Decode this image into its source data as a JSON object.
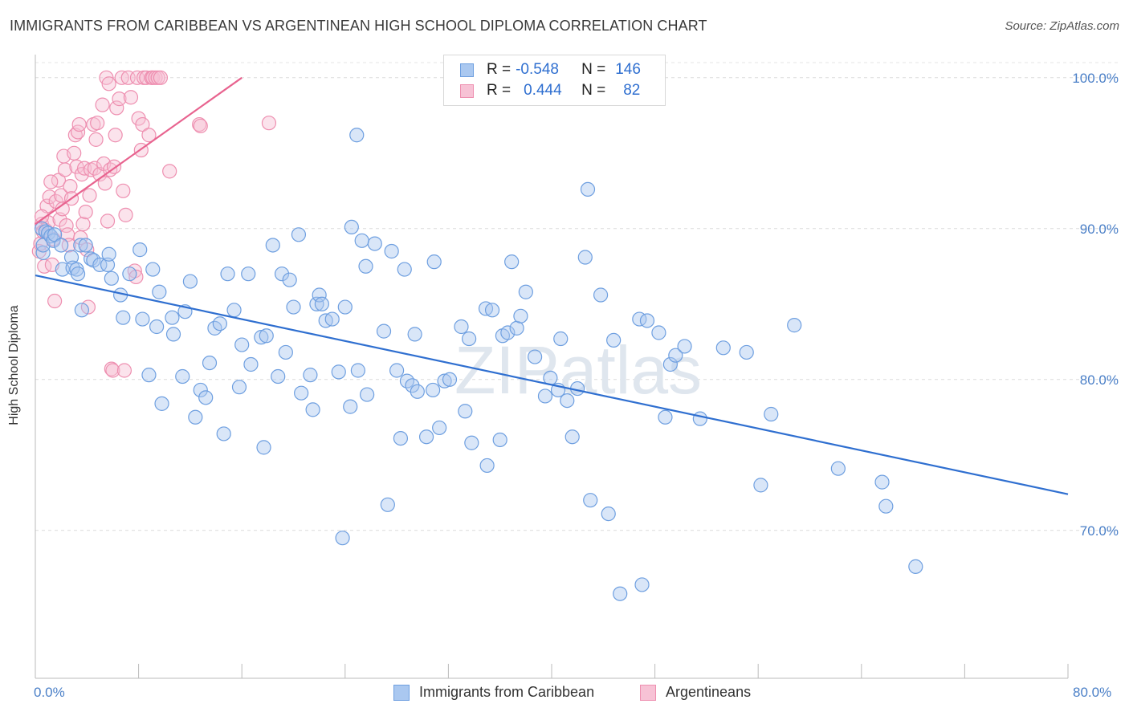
{
  "title": "IMMIGRANTS FROM CARIBBEAN VS ARGENTINEAN HIGH SCHOOL DIPLOMA CORRELATION CHART",
  "source": "Source: ZipAtlas.com",
  "watermark": "ZIPatlas",
  "colors": {
    "blue": "#6e9fe0",
    "blue_fill": "#aac8f0",
    "blue_line": "#2f6fd0",
    "pink": "#ee8fb0",
    "pink_fill": "#f7c2d5",
    "pink_line": "#e8638f",
    "axis_label": "#4a7fc7"
  },
  "legend": {
    "blue": {
      "r_label": "R =",
      "r_value": "-0.548",
      "n_label": "N =",
      "n_value": "146"
    },
    "pink": {
      "r_label": "R =",
      "r_value": "0.444",
      "n_label": "N =",
      "n_value": "82"
    }
  },
  "chart_data": {
    "type": "scatter",
    "title": "IMMIGRANTS FROM CARIBBEAN VS ARGENTINEAN HIGH SCHOOL DIPLOMA CORRELATION CHART",
    "xlabel": "",
    "ylabel": "High School Diploma",
    "xlim": [
      0,
      80
    ],
    "ylim": [
      60.2,
      101.0
    ],
    "x_tick_labels": [
      "0.0%",
      "80.0%"
    ],
    "y_ticks": [
      70,
      80,
      90,
      100
    ],
    "y_tick_labels": [
      "70.0%",
      "80.0%",
      "90.0%",
      "100.0%"
    ],
    "grid": "horizontal dashed",
    "legend_position": "top-center",
    "series": [
      {
        "name": "Immigrants from Caribbean",
        "color": "blue",
        "trend": {
          "x": [
            0,
            80
          ],
          "y": [
            86.9,
            72.4
          ]
        },
        "points": [
          [
            0.5,
            90.0
          ],
          [
            0.6,
            88.4
          ],
          [
            0.6,
            88.9
          ],
          [
            0.8,
            89.8
          ],
          [
            1.0,
            89.7
          ],
          [
            1.2,
            89.5
          ],
          [
            1.4,
            89.2
          ],
          [
            1.5,
            89.6
          ],
          [
            2.0,
            88.9
          ],
          [
            2.1,
            87.3
          ],
          [
            2.8,
            88.1
          ],
          [
            2.9,
            87.4
          ],
          [
            3.2,
            87.3
          ],
          [
            3.3,
            87.0
          ],
          [
            3.5,
            88.9
          ],
          [
            3.6,
            84.6
          ],
          [
            3.9,
            88.9
          ],
          [
            4.3,
            88.0
          ],
          [
            4.5,
            87.9
          ],
          [
            5.0,
            87.6
          ],
          [
            5.6,
            87.6
          ],
          [
            5.7,
            88.3
          ],
          [
            5.9,
            86.7
          ],
          [
            6.6,
            85.6
          ],
          [
            6.8,
            84.1
          ],
          [
            7.3,
            87.0
          ],
          [
            8.1,
            88.6
          ],
          [
            8.3,
            84.0
          ],
          [
            8.8,
            80.3
          ],
          [
            9.1,
            87.3
          ],
          [
            9.4,
            83.5
          ],
          [
            9.6,
            85.8
          ],
          [
            9.8,
            78.4
          ],
          [
            10.6,
            84.1
          ],
          [
            10.7,
            83.0
          ],
          [
            11.4,
            80.2
          ],
          [
            11.6,
            84.5
          ],
          [
            12.0,
            86.5
          ],
          [
            12.4,
            77.5
          ],
          [
            12.8,
            79.3
          ],
          [
            13.2,
            78.8
          ],
          [
            13.5,
            81.1
          ],
          [
            13.9,
            83.4
          ],
          [
            14.3,
            83.7
          ],
          [
            14.6,
            76.4
          ],
          [
            14.9,
            87.0
          ],
          [
            15.4,
            84.6
          ],
          [
            15.8,
            79.5
          ],
          [
            16.0,
            82.3
          ],
          [
            16.5,
            87.0
          ],
          [
            16.7,
            81.0
          ],
          [
            17.5,
            82.8
          ],
          [
            17.7,
            75.5
          ],
          [
            17.9,
            82.9
          ],
          [
            18.4,
            88.9
          ],
          [
            18.8,
            80.2
          ],
          [
            19.1,
            87.0
          ],
          [
            19.4,
            81.8
          ],
          [
            19.7,
            86.6
          ],
          [
            20.0,
            84.8
          ],
          [
            20.4,
            89.6
          ],
          [
            20.6,
            79.1
          ],
          [
            21.3,
            80.3
          ],
          [
            21.5,
            78.0
          ],
          [
            21.8,
            85.0
          ],
          [
            22.0,
            85.6
          ],
          [
            22.2,
            85.0
          ],
          [
            22.5,
            83.9
          ],
          [
            23.0,
            84.0
          ],
          [
            23.5,
            80.5
          ],
          [
            24.0,
            84.8
          ],
          [
            24.4,
            78.2
          ],
          [
            24.5,
            90.1
          ],
          [
            25.0,
            80.6
          ],
          [
            25.3,
            89.2
          ],
          [
            25.6,
            87.5
          ],
          [
            25.7,
            79.0
          ],
          [
            26.3,
            89.0
          ],
          [
            27.0,
            83.2
          ],
          [
            27.3,
            71.7
          ],
          [
            27.6,
            88.5
          ],
          [
            28.0,
            80.6
          ],
          [
            28.3,
            76.1
          ],
          [
            28.6,
            87.3
          ],
          [
            28.8,
            79.9
          ],
          [
            29.2,
            79.6
          ],
          [
            29.4,
            83.0
          ],
          [
            29.6,
            79.2
          ],
          [
            30.3,
            76.2
          ],
          [
            30.8,
            79.3
          ],
          [
            30.9,
            87.8
          ],
          [
            31.3,
            76.8
          ],
          [
            31.7,
            79.9
          ],
          [
            32.1,
            80.0
          ],
          [
            33.0,
            83.5
          ],
          [
            33.3,
            77.9
          ],
          [
            33.6,
            82.7
          ],
          [
            33.8,
            75.8
          ],
          [
            34.9,
            84.7
          ],
          [
            35.0,
            74.3
          ],
          [
            35.4,
            84.6
          ],
          [
            36.0,
            76.0
          ],
          [
            36.2,
            82.9
          ],
          [
            36.6,
            83.1
          ],
          [
            36.9,
            87.8
          ],
          [
            37.3,
            83.4
          ],
          [
            37.6,
            84.2
          ],
          [
            38.0,
            85.8
          ],
          [
            38.7,
            81.5
          ],
          [
            39.5,
            78.9
          ],
          [
            39.9,
            80.1
          ],
          [
            40.5,
            79.3
          ],
          [
            40.7,
            82.7
          ],
          [
            41.2,
            78.6
          ],
          [
            41.6,
            76.2
          ],
          [
            42.0,
            79.4
          ],
          [
            42.6,
            88.1
          ],
          [
            42.8,
            92.6
          ],
          [
            43.0,
            72.0
          ],
          [
            43.8,
            85.6
          ],
          [
            44.4,
            71.1
          ],
          [
            44.8,
            82.6
          ],
          [
            45.3,
            65.8
          ],
          [
            46.8,
            84.0
          ],
          [
            47.0,
            66.4
          ],
          [
            47.4,
            83.9
          ],
          [
            48.3,
            83.1
          ],
          [
            48.8,
            77.5
          ],
          [
            49.2,
            81.0
          ],
          [
            49.6,
            81.6
          ],
          [
            50.3,
            82.2
          ],
          [
            51.5,
            77.4
          ],
          [
            53.3,
            82.1
          ],
          [
            55.1,
            81.8
          ],
          [
            56.2,
            73.0
          ],
          [
            57.0,
            77.7
          ],
          [
            58.8,
            83.6
          ],
          [
            62.2,
            74.1
          ],
          [
            65.6,
            73.2
          ],
          [
            65.9,
            71.6
          ],
          [
            68.2,
            67.6
          ],
          [
            24.9,
            96.2
          ],
          [
            23.8,
            69.5
          ]
        ]
      },
      {
        "name": "Argentineans",
        "color": "pink",
        "trend": {
          "x": [
            0,
            16
          ],
          "y": [
            90.3,
            100.0
          ]
        },
        "points": [
          [
            0.3,
            88.5
          ],
          [
            0.4,
            89.0
          ],
          [
            0.5,
            90.3
          ],
          [
            0.6,
            89.8
          ],
          [
            0.7,
            87.5
          ],
          [
            0.8,
            89.9
          ],
          [
            0.9,
            91.5
          ],
          [
            1.0,
            90.4
          ],
          [
            1.1,
            92.1
          ],
          [
            1.3,
            87.6
          ],
          [
            1.4,
            89.3
          ],
          [
            1.5,
            85.2
          ],
          [
            1.6,
            91.8
          ],
          [
            1.8,
            93.2
          ],
          [
            1.9,
            90.6
          ],
          [
            2.0,
            92.2
          ],
          [
            2.1,
            91.3
          ],
          [
            2.2,
            94.8
          ],
          [
            2.3,
            93.9
          ],
          [
            2.4,
            90.2
          ],
          [
            2.5,
            89.6
          ],
          [
            2.6,
            88.9
          ],
          [
            2.7,
            92.8
          ],
          [
            2.8,
            92.0
          ],
          [
            3.0,
            95.0
          ],
          [
            3.1,
            96.2
          ],
          [
            3.2,
            94.1
          ],
          [
            3.3,
            96.4
          ],
          [
            3.4,
            96.9
          ],
          [
            3.5,
            89.4
          ],
          [
            3.6,
            93.6
          ],
          [
            3.7,
            90.3
          ],
          [
            3.8,
            94.0
          ],
          [
            3.9,
            91.1
          ],
          [
            4.0,
            88.6
          ],
          [
            4.1,
            84.8
          ],
          [
            4.2,
            92.2
          ],
          [
            4.3,
            93.9
          ],
          [
            4.5,
            96.9
          ],
          [
            4.6,
            94.0
          ],
          [
            4.7,
            95.9
          ],
          [
            4.8,
            97.0
          ],
          [
            5.0,
            93.6
          ],
          [
            5.2,
            98.2
          ],
          [
            5.3,
            94.3
          ],
          [
            5.4,
            93.0
          ],
          [
            5.5,
            100.0
          ],
          [
            5.6,
            90.5
          ],
          [
            5.7,
            99.6
          ],
          [
            5.8,
            93.9
          ],
          [
            5.9,
            80.7
          ],
          [
            6.0,
            80.6
          ],
          [
            6.1,
            94.1
          ],
          [
            6.2,
            96.2
          ],
          [
            6.3,
            98.0
          ],
          [
            6.5,
            98.6
          ],
          [
            6.7,
            100.0
          ],
          [
            6.8,
            92.5
          ],
          [
            6.9,
            80.6
          ],
          [
            7.0,
            90.9
          ],
          [
            7.2,
            100.0
          ],
          [
            7.4,
            98.7
          ],
          [
            7.7,
            87.2
          ],
          [
            7.8,
            86.8
          ],
          [
            7.9,
            100.0
          ],
          [
            8.0,
            97.3
          ],
          [
            8.2,
            95.2
          ],
          [
            8.3,
            96.9
          ],
          [
            8.4,
            100.0
          ],
          [
            8.6,
            100.0
          ],
          [
            8.8,
            96.2
          ],
          [
            9.0,
            100.0
          ],
          [
            9.1,
            100.0
          ],
          [
            9.3,
            100.0
          ],
          [
            9.5,
            100.0
          ],
          [
            9.7,
            100.0
          ],
          [
            10.4,
            93.8
          ],
          [
            12.7,
            96.9
          ],
          [
            12.8,
            96.8
          ],
          [
            18.1,
            97.0
          ],
          [
            0.5,
            90.8
          ],
          [
            1.2,
            93.1
          ]
        ]
      }
    ]
  },
  "bottom_legend": {
    "blue_label": "Immigrants from Caribbean",
    "pink_label": "Argentineans"
  }
}
